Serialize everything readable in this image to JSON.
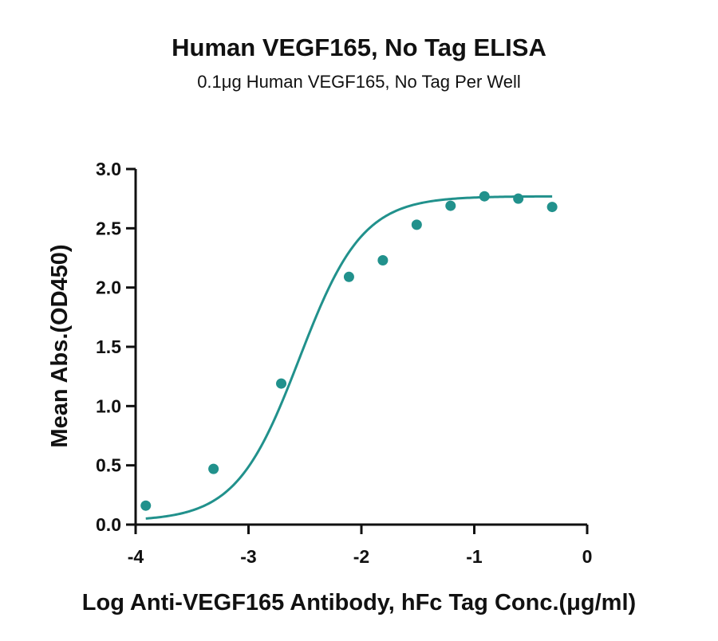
{
  "chart_data": {
    "type": "scatter",
    "title": "Human VEGF165, No Tag ELISA",
    "subtitle": "0.1μg Human VEGF165, No Tag Per Well",
    "xlabel": "Log Anti-VEGF165 Antibody, hFc Tag Conc.(μg/ml)",
    "ylabel": "Mean Abs.(OD450)",
    "xlim": [
      -4,
      0
    ],
    "ylim": [
      0,
      3
    ],
    "x_ticks": [
      -4,
      -3,
      -2,
      -1,
      0
    ],
    "x_tick_labels": [
      "-4",
      "-3",
      "-2",
      "-1",
      "0"
    ],
    "y_ticks": [
      0,
      0.5,
      1,
      1.5,
      2,
      2.5,
      3
    ],
    "y_tick_labels": [
      "0.0",
      "0.5",
      "1.0",
      "1.5",
      "2.0",
      "2.5",
      "3.0"
    ],
    "grid": false,
    "color": "#21918c",
    "series": [
      {
        "points": [
          {
            "x": -3.91,
            "y": 0.16
          },
          {
            "x": -3.31,
            "y": 0.47
          },
          {
            "x": -2.71,
            "y": 1.19
          },
          {
            "x": -2.11,
            "y": 2.09
          },
          {
            "x": -1.81,
            "y": 2.23
          },
          {
            "x": -1.51,
            "y": 2.53
          },
          {
            "x": -1.21,
            "y": 2.69
          },
          {
            "x": -0.91,
            "y": 2.77
          },
          {
            "x": -0.61,
            "y": 2.75
          },
          {
            "x": -0.31,
            "y": 2.68
          }
        ]
      }
    ],
    "fit_curve": {
      "type": "4PL",
      "bottom": 0.03,
      "top": 2.77,
      "log_ec50": -2.55,
      "hill_slope": 1.55,
      "x_range": [
        -3.91,
        -0.31
      ]
    }
  }
}
